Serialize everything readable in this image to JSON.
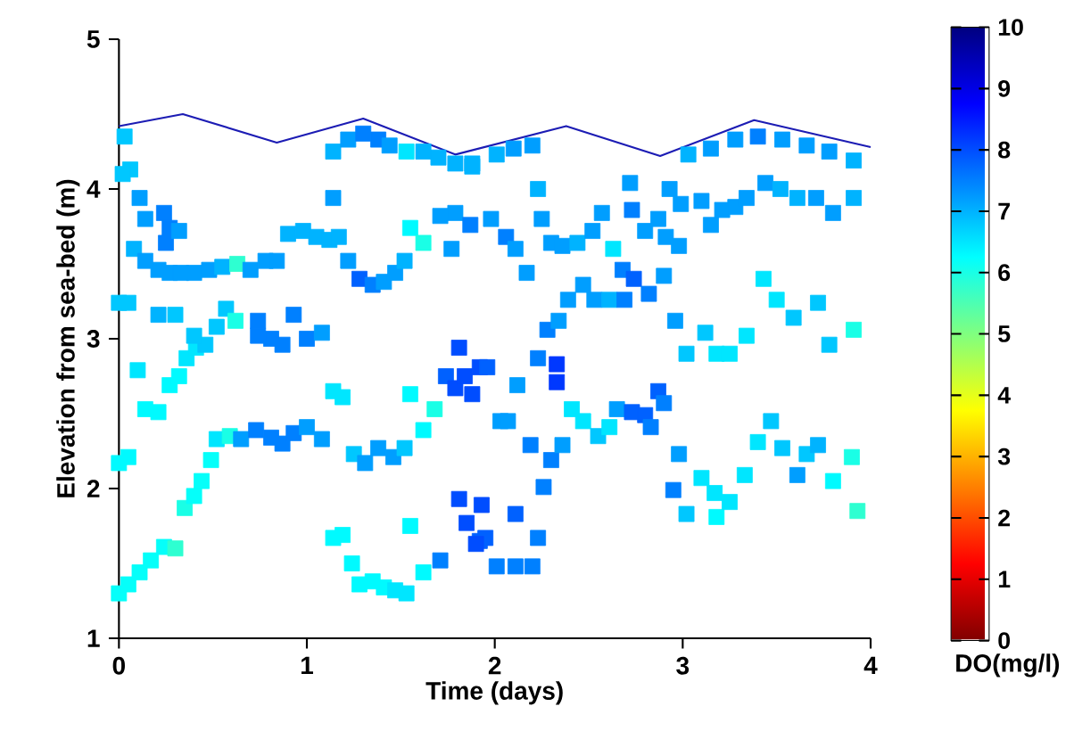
{
  "chart_data": {
    "type": "scatter",
    "xlabel": "Time (days)",
    "ylabel": "Elevation from sea-bed (m)",
    "clabel": "DO(mg/l)",
    "xlim": [
      0,
      4
    ],
    "ylim": [
      1,
      5
    ],
    "xticks": [
      0,
      1,
      2,
      3,
      4
    ],
    "yticks": [
      1,
      2,
      3,
      4,
      5
    ],
    "clim": [
      0,
      10
    ],
    "cticks": [
      0,
      1,
      2,
      3,
      4,
      5,
      6,
      7,
      8,
      9,
      10
    ],
    "grid": false,
    "series": [
      {
        "type": "line",
        "color": "#1c1cb4",
        "marker": "none",
        "line_style": "solid",
        "x": [
          0,
          0.34,
          0.84,
          1.3,
          1.79,
          2.38,
          2.88,
          3.38,
          4
        ],
        "values": [
          4.42,
          4.5,
          4.31,
          4.47,
          4.23,
          4.42,
          4.22,
          4.46,
          4.28
        ]
      },
      {
        "type": "scatter",
        "marker": "square",
        "colors": [
          "#05fffa",
          "#05fffa",
          "#05fffa",
          "#05fffa",
          "#05fffa",
          "#2effd1",
          "#1affe6",
          "#05fffa",
          "#05fffa",
          "#05fffa",
          "#00e6ff",
          "#1affe6",
          "#009eff",
          "#0080ff",
          "#0080ff",
          "#0080ff",
          "#0080ff",
          "#009eff",
          "#009eff",
          "#00e6ff",
          "#00e6ff",
          "#00c7ff",
          "#009eff",
          "#009eff",
          "#009eff",
          "#00c7ff",
          "#00faff",
          "#00faff",
          "#1affe6",
          "#00faff",
          "#00faff",
          "#00faff",
          "#00faff",
          "#00faff",
          "#00faff",
          "#00e6ff",
          "#00e6ff",
          "#00faff",
          "#00faff",
          "#0080ff",
          "#004dff",
          "#004dff",
          "#0061ff",
          "#00faff",
          "#00faff",
          "#00e6ff",
          "#00faff",
          "#00faff",
          "#00faff",
          "#00faff",
          "#00e6ff",
          "#00e6ff",
          "#00c7ff",
          "#00c7ff",
          "#00c7ff",
          "#1affe6",
          "#00b3ff",
          "#00c7ff",
          "#00c7ff",
          "#0080ff",
          "#0080ff",
          "#0080ff",
          "#0080ff",
          "#0080ff",
          "#009eff",
          "#0080ff",
          "#00c7ff",
          "#00c7ff",
          "#00b3ff",
          "#009eff",
          "#009eff",
          "#009eff",
          "#009eff",
          "#009eff",
          "#009eff",
          "#00b3ff",
          "#2effd1",
          "#009eff",
          "#009eff",
          "#009eff",
          "#00b3ff",
          "#00b3ff",
          "#00b3ff",
          "#00b3ff",
          "#00b3ff",
          "#009eff",
          "#0061ff",
          "#0080ff",
          "#009eff",
          "#009eff",
          "#00b3ff",
          "#00faff",
          "#1affe6",
          "#009eff",
          "#009eff",
          "#0080ff",
          "#009eff",
          "#00c7ff",
          "#00c7ff",
          "#009eff",
          "#009eff",
          "#0080ff",
          "#0080ff",
          "#0080ff",
          "#009eff",
          "#009eff",
          "#00c7ff",
          "#00b3ff",
          "#009eff",
          "#0080ff",
          "#0080ff",
          "#009eff",
          "#00e6ff",
          "#00b3ff",
          "#00b3ff",
          "#00b3ff",
          "#00b3ff",
          "#004dff",
          "#0061ff",
          "#004dff",
          "#004dff",
          "#004dff",
          "#004dff",
          "#00b3ff",
          "#00b3ff",
          "#009eff",
          "#009eff",
          "#00b3ff",
          "#009eff",
          "#009eff",
          "#0080ff",
          "#009eff",
          "#009eff",
          "#009eff",
          "#00b3ff",
          "#009eff",
          "#0080ff",
          "#009eff",
          "#009eff",
          "#00b3ff",
          "#009eff",
          "#009eff",
          "#009eff",
          "#00b3ff",
          "#009eff",
          "#009eff",
          "#00e6ff",
          "#0080ff",
          "#009eff",
          "#0080ff",
          "#009eff",
          "#009eff",
          "#009eff",
          "#009eff",
          "#009eff",
          "#009eff",
          "#009eff",
          "#009eff",
          "#009eff",
          "#009eff",
          "#009eff",
          "#009eff",
          "#00b3ff",
          "#00b3ff",
          "#009eff",
          "#009eff",
          "#00b3ff",
          "#0080ff",
          "#009eff",
          "#009eff",
          "#009eff",
          "#009eff",
          "#00b3ff",
          "#0080ff",
          "#0061ff",
          "#0080ff",
          "#009eff",
          "#009eff",
          "#00c7ff",
          "#00c7ff",
          "#00e6ff",
          "#00e6ff",
          "#00e6ff",
          "#00e6ff",
          "#00e6ff",
          "#00c7ff",
          "#00c7ff",
          "#00c7ff",
          "#1affe6",
          "#0061ff",
          "#009eff",
          "#009eff",
          "#009eff",
          "#0080ff",
          "#0080ff",
          "#0038ff",
          "#0038ff",
          "#0080ff",
          "#009eff",
          "#00e6ff",
          "#00e6ff",
          "#00c7ff",
          "#00e6ff",
          "#009eff",
          "#0061ff",
          "#0061ff",
          "#0080ff",
          "#0061ff",
          "#0080ff",
          "#0080ff",
          "#009eff",
          "#0080ff",
          "#00c7ff",
          "#00e6ff",
          "#00e6ff",
          "#00faff",
          "#00e6ff",
          "#00e6ff",
          "#00e6ff",
          "#00c7ff",
          "#00c7ff",
          "#009eff",
          "#00c7ff",
          "#00b3ff",
          "#00faff",
          "#1affe6",
          "#2effd1",
          "#004dff",
          "#0061ff",
          "#004dff",
          "#0061ff",
          "#0080ff",
          "#0080ff",
          "#0080ff",
          "#0080ff"
        ],
        "x": [
          0.0,
          0.05,
          0.11,
          0.17,
          0.24,
          0.3,
          0.35,
          0.4,
          0.44,
          0.49,
          0.52,
          0.59,
          0.65,
          0.73,
          0.81,
          0.87,
          0.93,
          1.0,
          1.08,
          1.14,
          1.19,
          1.25,
          1.31,
          1.38,
          1.46,
          1.52,
          1.55,
          1.62,
          1.68,
          1.14,
          1.19,
          1.24,
          1.28,
          1.35,
          1.41,
          1.47,
          1.53,
          1.62,
          1.55,
          1.71,
          1.81,
          1.85,
          1.92,
          0.0,
          0.05,
          0.1,
          0.14,
          0.21,
          0.27,
          0.32,
          0.36,
          0.41,
          0.46,
          0.52,
          0.57,
          0.62,
          0.21,
          0.3,
          0.4,
          0.74,
          0.81,
          0.87,
          0.93,
          1.0,
          1.08,
          0.74,
          0.0,
          0.05,
          0.08,
          0.14,
          0.21,
          0.27,
          0.33,
          0.4,
          0.48,
          0.55,
          0.63,
          0.7,
          0.78,
          0.84,
          0.9,
          0.98,
          1.05,
          1.12,
          1.17,
          1.22,
          1.28,
          1.35,
          1.41,
          1.47,
          1.52,
          1.55,
          1.62,
          1.71,
          1.79,
          1.87,
          1.77,
          0.06,
          0.02,
          0.11,
          0.14,
          0.24,
          0.27,
          0.25,
          0.32,
          1.14,
          0.03,
          1.14,
          1.22,
          1.3,
          1.38,
          1.44,
          1.53,
          1.62,
          1.7,
          1.79,
          1.88,
          1.81,
          1.74,
          1.79,
          1.88,
          1.84,
          1.92,
          1.88,
          2.01,
          2.1,
          2.2,
          3.03,
          3.15,
          3.28,
          3.4,
          3.53,
          3.66,
          3.78,
          3.91,
          1.98,
          2.06,
          2.11,
          2.17,
          2.23,
          2.25,
          2.3,
          2.36,
          2.44,
          2.52,
          2.57,
          2.63,
          2.68,
          2.72,
          2.73,
          2.8,
          2.87,
          2.91,
          2.93,
          2.98,
          2.99,
          3.1,
          3.15,
          3.21,
          3.28,
          3.34,
          3.44,
          3.52,
          3.61,
          3.71,
          3.8,
          3.91,
          2.28,
          2.34,
          2.39,
          2.47,
          2.53,
          2.61,
          2.69,
          2.74,
          2.82,
          2.9,
          2.96,
          3.02,
          3.12,
          3.18,
          3.25,
          3.34,
          3.43,
          3.5,
          3.59,
          3.72,
          3.78,
          3.91,
          1.96,
          2.12,
          2.03,
          2.07,
          2.19,
          2.23,
          2.33,
          2.33,
          2.3,
          2.36,
          2.41,
          2.47,
          2.55,
          2.61,
          2.65,
          2.73,
          2.8,
          2.83,
          2.87,
          2.9,
          2.26,
          2.98,
          2.95,
          3.02,
          3.1,
          3.17,
          3.18,
          3.25,
          3.33,
          3.4,
          3.47,
          3.53,
          3.61,
          3.66,
          3.72,
          3.8,
          3.9,
          3.93,
          1.93,
          1.95,
          1.9,
          2.11,
          2.23,
          2.01,
          2.11,
          2.2
        ],
        "values": [
          1.3,
          1.36,
          1.44,
          1.52,
          1.61,
          1.6,
          1.87,
          1.95,
          2.05,
          2.19,
          2.33,
          2.35,
          2.33,
          2.39,
          2.34,
          2.3,
          2.37,
          2.41,
          2.33,
          2.65,
          2.61,
          2.23,
          2.17,
          2.27,
          2.21,
          2.27,
          2.63,
          2.39,
          2.53,
          1.67,
          1.69,
          1.5,
          1.36,
          1.38,
          1.34,
          1.32,
          1.3,
          1.44,
          1.75,
          1.52,
          1.93,
          1.77,
          1.65,
          2.17,
          2.21,
          2.79,
          2.53,
          2.51,
          2.69,
          2.75,
          2.87,
          2.94,
          2.96,
          3.08,
          3.2,
          3.12,
          3.16,
          3.16,
          3.02,
          3.12,
          3.0,
          2.96,
          3.16,
          3.0,
          3.04,
          3.02,
          3.24,
          3.24,
          3.6,
          3.52,
          3.46,
          3.44,
          3.44,
          3.44,
          3.46,
          3.48,
          3.5,
          3.46,
          3.52,
          3.52,
          3.7,
          3.72,
          3.68,
          3.66,
          3.68,
          3.52,
          3.4,
          3.36,
          3.38,
          3.44,
          3.52,
          3.74,
          3.64,
          3.82,
          3.84,
          3.76,
          3.6,
          4.13,
          4.1,
          3.94,
          3.8,
          3.84,
          3.74,
          3.64,
          3.72,
          3.94,
          4.35,
          4.25,
          4.33,
          4.37,
          4.33,
          4.29,
          4.25,
          4.25,
          4.21,
          4.17,
          4.17,
          2.94,
          2.75,
          2.67,
          2.63,
          2.75,
          2.81,
          4.15,
          4.23,
          4.27,
          4.29,
          4.23,
          4.27,
          4.33,
          4.35,
          4.33,
          4.29,
          4.25,
          4.19,
          3.8,
          3.68,
          3.6,
          3.44,
          4.0,
          3.8,
          3.64,
          3.62,
          3.64,
          3.72,
          3.84,
          3.6,
          3.46,
          4.04,
          3.86,
          3.72,
          3.8,
          3.68,
          4.0,
          3.62,
          3.9,
          3.92,
          3.76,
          3.86,
          3.88,
          3.94,
          4.04,
          4.0,
          3.94,
          3.94,
          3.84,
          3.94,
          3.06,
          3.12,
          3.26,
          3.36,
          3.26,
          3.26,
          3.26,
          3.4,
          3.3,
          3.42,
          3.12,
          2.9,
          3.04,
          2.9,
          2.9,
          3.02,
          3.4,
          3.26,
          3.14,
          3.24,
          2.96,
          3.06,
          2.81,
          2.69,
          2.45,
          2.45,
          2.29,
          2.87,
          2.83,
          2.71,
          2.19,
          2.29,
          2.53,
          2.45,
          2.35,
          2.41,
          2.53,
          2.51,
          2.49,
          2.41,
          2.65,
          2.57,
          2.01,
          2.23,
          1.99,
          1.83,
          2.07,
          1.97,
          1.81,
          1.91,
          2.09,
          2.31,
          2.45,
          2.27,
          2.09,
          2.23,
          2.29,
          2.05,
          2.21,
          1.85,
          1.89,
          1.67,
          1.63,
          1.83,
          1.67,
          1.48,
          1.48,
          1.48
        ],
        "cvalues": [
          6.2,
          6.2,
          6.2,
          6.2,
          6.2,
          5.8,
          6.0,
          6.2,
          6.2,
          6.2,
          6.5,
          6.0,
          7.2,
          7.5,
          7.5,
          7.5,
          7.5,
          7.2,
          7.2,
          6.5,
          6.5,
          6.8,
          7.2,
          7.2,
          7.2,
          6.8,
          6.3,
          6.3,
          6.0,
          6.3,
          6.3,
          6.3,
          6.3,
          6.3,
          6.3,
          6.5,
          6.5,
          6.3,
          6.3,
          7.5,
          8.0,
          8.0,
          7.8,
          6.3,
          6.3,
          6.5,
          6.3,
          6.3,
          6.3,
          6.3,
          6.5,
          6.5,
          6.8,
          6.8,
          6.8,
          6.0,
          7.0,
          6.8,
          6.8,
          7.5,
          7.5,
          7.5,
          7.5,
          7.5,
          7.2,
          7.5,
          6.8,
          6.8,
          7.0,
          7.2,
          7.2,
          7.2,
          7.2,
          7.2,
          7.2,
          7.0,
          5.8,
          7.2,
          7.2,
          7.2,
          7.0,
          7.0,
          7.0,
          7.0,
          7.0,
          7.2,
          7.8,
          7.5,
          7.2,
          7.2,
          7.0,
          6.3,
          6.0,
          7.2,
          7.2,
          7.5,
          7.2,
          6.8,
          6.8,
          7.2,
          7.2,
          7.5,
          7.5,
          7.5,
          7.2,
          7.2,
          6.8,
          7.0,
          7.2,
          7.5,
          7.5,
          7.2,
          6.5,
          7.0,
          7.0,
          7.0,
          7.0,
          8.0,
          7.8,
          8.0,
          8.0,
          8.0,
          8.0,
          7.0,
          7.0,
          7.2,
          7.2,
          7.0,
          7.2,
          7.2,
          7.5,
          7.2,
          7.2,
          7.2,
          7.0,
          7.2,
          7.5,
          7.2,
          7.2,
          7.0,
          7.2,
          7.2,
          7.2,
          7.0,
          7.2,
          7.2,
          6.5,
          7.5,
          7.2,
          7.5,
          7.2,
          7.2,
          7.2,
          7.2,
          7.2,
          7.2,
          7.2,
          7.2,
          7.2,
          7.2,
          7.2,
          7.2,
          7.0,
          7.0,
          7.2,
          7.2,
          7.0,
          7.5,
          7.2,
          7.2,
          7.2,
          7.2,
          7.0,
          7.5,
          7.8,
          7.5,
          7.2,
          7.2,
          6.8,
          6.8,
          6.5,
          6.5,
          6.5,
          6.5,
          6.5,
          6.8,
          6.8,
          6.8,
          6.0,
          7.8,
          7.2,
          7.2,
          7.2,
          7.5,
          7.5,
          8.2,
          8.2,
          7.5,
          7.2,
          6.5,
          6.5,
          6.8,
          6.5,
          7.2,
          7.8,
          7.8,
          7.5,
          7.8,
          7.5,
          7.5,
          7.2,
          7.5,
          6.8,
          6.5,
          6.5,
          6.3,
          6.5,
          6.5,
          6.5,
          6.8,
          6.8,
          7.2,
          6.8,
          7.0,
          6.3,
          6.0,
          5.8,
          8.0,
          7.8,
          8.0,
          7.8,
          7.5,
          7.5,
          7.5,
          7.5
        ]
      }
    ]
  }
}
